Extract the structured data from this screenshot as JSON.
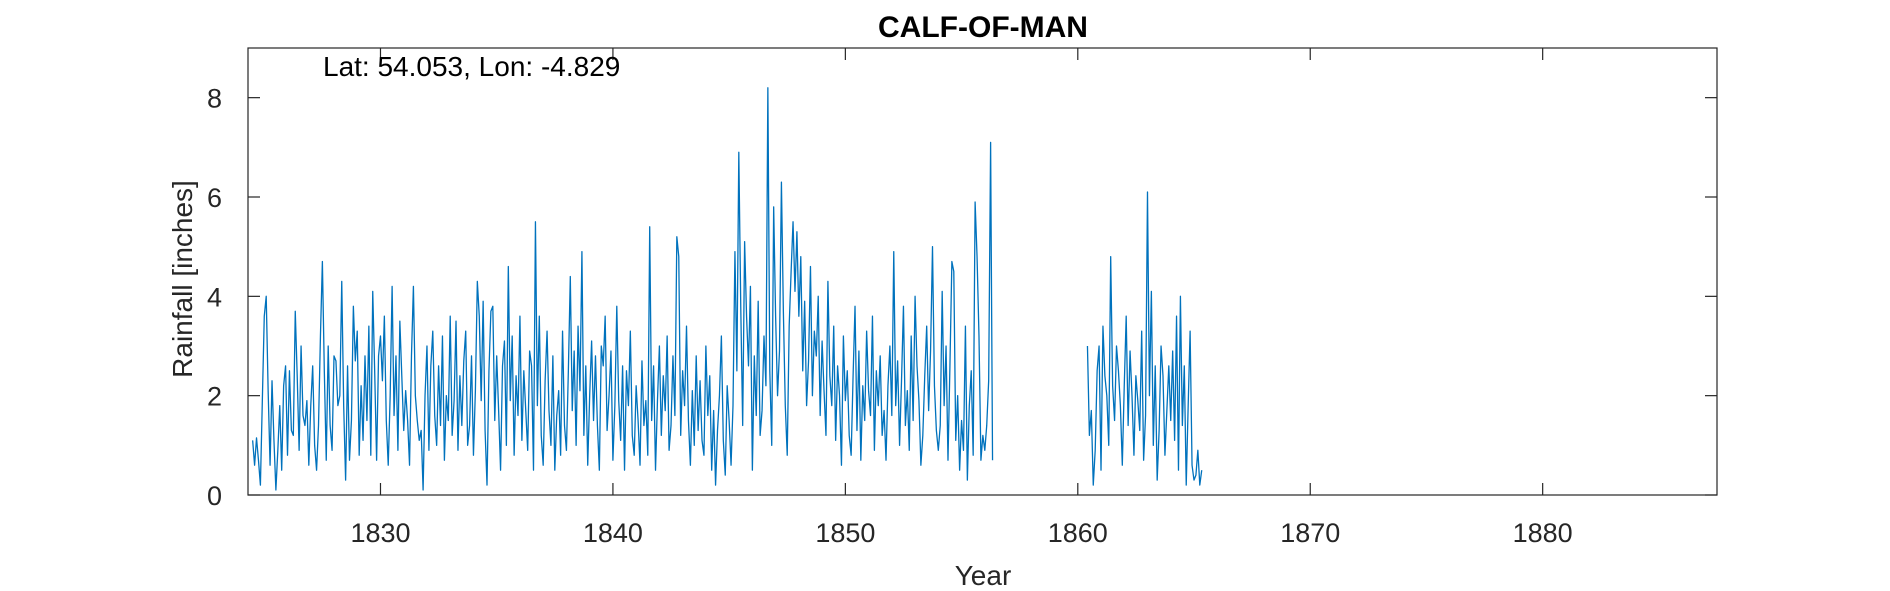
{
  "chart_data": {
    "type": "line",
    "title": "CALF-OF-MAN",
    "xlabel": "Year",
    "ylabel": "Rainfall [inches]",
    "annotation": "Lat: 54.053, Lon: -4.829",
    "xlim": [
      1824.3,
      1887.5
    ],
    "ylim": [
      0,
      9
    ],
    "xticks": [
      1830,
      1840,
      1850,
      1860,
      1870,
      1880
    ],
    "yticks": [
      0,
      2,
      4,
      6,
      8
    ],
    "grid": false,
    "legend": "none",
    "line_color": "#0072BD",
    "series": [
      {
        "x_start": 1824.5,
        "x_step": 0.08333,
        "values": [
          1.1,
          0.6,
          1.15,
          0.7,
          0.2,
          1.9,
          3.6,
          4.0,
          2.1,
          0.6,
          2.3,
          1.1,
          0.1,
          0.9,
          1.8,
          0.5,
          2.2,
          2.6,
          0.8,
          2.5,
          1.3,
          1.2,
          3.7,
          2.4,
          0.9,
          3.0,
          1.6,
          1.4,
          1.9,
          0.6,
          1.8,
          2.6,
          1.0,
          0.5,
          1.4,
          3.2,
          4.7,
          2.5,
          0.7,
          3.0,
          1.4,
          0.9,
          2.8,
          2.7,
          1.8,
          2.0,
          4.3,
          1.8,
          0.3,
          2.6,
          0.7,
          1.5,
          3.8,
          2.7,
          3.3,
          0.8,
          2.2,
          1.1,
          2.8,
          1.5,
          3.4,
          0.8,
          4.1,
          2.5,
          0.7,
          2.8,
          3.2,
          2.3,
          3.6,
          1.5,
          0.6,
          2.0,
          4.2,
          1.6,
          2.8,
          0.9,
          3.5,
          2.4,
          1.3,
          2.1,
          1.5,
          0.6,
          2.8,
          4.2,
          2.0,
          1.5,
          1.1,
          1.3,
          0.1,
          2.0,
          3.0,
          0.9,
          2.6,
          3.3,
          1.6,
          1.0,
          2.6,
          1.4,
          3.2,
          0.7,
          2.0,
          1.5,
          3.6,
          1.2,
          1.9,
          3.5,
          0.9,
          2.4,
          1.4,
          2.7,
          3.3,
          1.0,
          1.4,
          2.8,
          0.8,
          2.1,
          4.3,
          3.6,
          1.9,
          3.9,
          1.3,
          0.2,
          2.5,
          3.7,
          3.8,
          1.5,
          2.8,
          1.7,
          0.5,
          2.6,
          3.1,
          1.0,
          4.6,
          1.9,
          3.2,
          0.8,
          2.4,
          1.6,
          3.6,
          1.1,
          2.5,
          1.7,
          0.9,
          2.9,
          2.6,
          0.5,
          5.5,
          1.8,
          3.6,
          1.2,
          0.6,
          2.3,
          3.3,
          1.7,
          1.0,
          2.8,
          0.5,
          1.6,
          2.1,
          0.8,
          3.3,
          1.4,
          0.9,
          2.5,
          4.4,
          1.7,
          2.9,
          1.0,
          3.4,
          2.1,
          4.9,
          1.2,
          2.6,
          0.6,
          2.0,
          3.1,
          1.5,
          2.8,
          1.4,
          0.5,
          3.0,
          2.6,
          3.6,
          1.3,
          2.0,
          2.9,
          0.7,
          1.8,
          3.8,
          1.9,
          1.1,
          2.6,
          0.5,
          2.5,
          1.8,
          3.3,
          1.2,
          0.8,
          2.2,
          1.5,
          0.6,
          2.7,
          1.4,
          1.9,
          0.8,
          5.4,
          1.5,
          2.6,
          0.5,
          1.9,
          3.0,
          1.2,
          2.4,
          1.7,
          3.2,
          0.9,
          1.4,
          2.8,
          1.6,
          5.2,
          4.8,
          1.2,
          2.5,
          1.8,
          3.4,
          1.5,
          0.6,
          2.1,
          1.0,
          2.8,
          1.3,
          2.3,
          1.1,
          0.8,
          3.0,
          1.6,
          2.4,
          0.5,
          1.7,
          0.2,
          1.3,
          2.0,
          3.2,
          1.1,
          0.4,
          2.2,
          1.5,
          0.6,
          1.8,
          4.9,
          2.5,
          6.9,
          3.8,
          1.4,
          5.1,
          3.6,
          2.6,
          4.2,
          0.5,
          2.8,
          1.6,
          3.9,
          1.2,
          1.7,
          3.2,
          2.2,
          8.2,
          2.5,
          1.0,
          5.8,
          3.6,
          2.0,
          2.9,
          6.3,
          3.7,
          1.8,
          0.8,
          3.4,
          4.5,
          5.5,
          4.1,
          5.3,
          3.6,
          4.8,
          2.5,
          3.9,
          1.8,
          2.7,
          4.6,
          2.0,
          3.3,
          2.8,
          4.0,
          1.6,
          3.1,
          2.1,
          1.2,
          4.3,
          2.4,
          1.8,
          3.4,
          1.1,
          2.6,
          2.0,
          0.6,
          3.2,
          1.9,
          2.5,
          1.2,
          0.8,
          2.4,
          3.8,
          1.3,
          2.9,
          0.7,
          2.2,
          1.5,
          3.3,
          2.1,
          1.6,
          3.6,
          0.9,
          2.5,
          1.8,
          2.8,
          1.2,
          1.7,
          0.7,
          2.2,
          3.0,
          1.6,
          4.9,
          1.8,
          2.7,
          1.0,
          2.3,
          3.8,
          1.4,
          2.1,
          0.9,
          3.2,
          1.5,
          4.0,
          2.6,
          1.9,
          0.6,
          1.2,
          2.4,
          3.4,
          1.7,
          2.9,
          5.0,
          2.2,
          1.3,
          0.9,
          1.4,
          4.1,
          1.8,
          3.0,
          0.7,
          2.6,
          4.7,
          4.5,
          1.1,
          2.0,
          0.5,
          1.5,
          0.9,
          3.4,
          0.3,
          1.8,
          2.5,
          0.8,
          5.9,
          4.8,
          3.2,
          0.7,
          1.2,
          0.9,
          1.4,
          2.3,
          7.1,
          0.7,
          null,
          null,
          null,
          null,
          null,
          null,
          null,
          null,
          null,
          null,
          null,
          null,
          null,
          null,
          null,
          null,
          null,
          null,
          null,
          null,
          null,
          null,
          null,
          null,
          null,
          null,
          null,
          null,
          null,
          null,
          null,
          null,
          null,
          null,
          null,
          null,
          null,
          null,
          null,
          null,
          null,
          null,
          null,
          null,
          null,
          null,
          null,
          null,
          3.0,
          1.2,
          1.7,
          0.2,
          0.9,
          2.5,
          3.0,
          0.5,
          3.4,
          2.4,
          2.0,
          1.0,
          4.8,
          2.2,
          1.5,
          3.0,
          2.5,
          1.8,
          0.6,
          2.2,
          3.6,
          1.4,
          2.9,
          2.0,
          0.8,
          2.4,
          1.9,
          1.3,
          3.3,
          0.7,
          1.6,
          6.1,
          2.0,
          4.1,
          1.0,
          2.6,
          0.3,
          1.3,
          3.0,
          2.4,
          0.8,
          1.7,
          2.6,
          1.5,
          2.9,
          1.1,
          3.6,
          0.5,
          4.0,
          1.4,
          2.6,
          0.2,
          1.8,
          3.3,
          0.6,
          0.3,
          0.4,
          0.9,
          0.2,
          0.5
        ]
      }
    ]
  }
}
